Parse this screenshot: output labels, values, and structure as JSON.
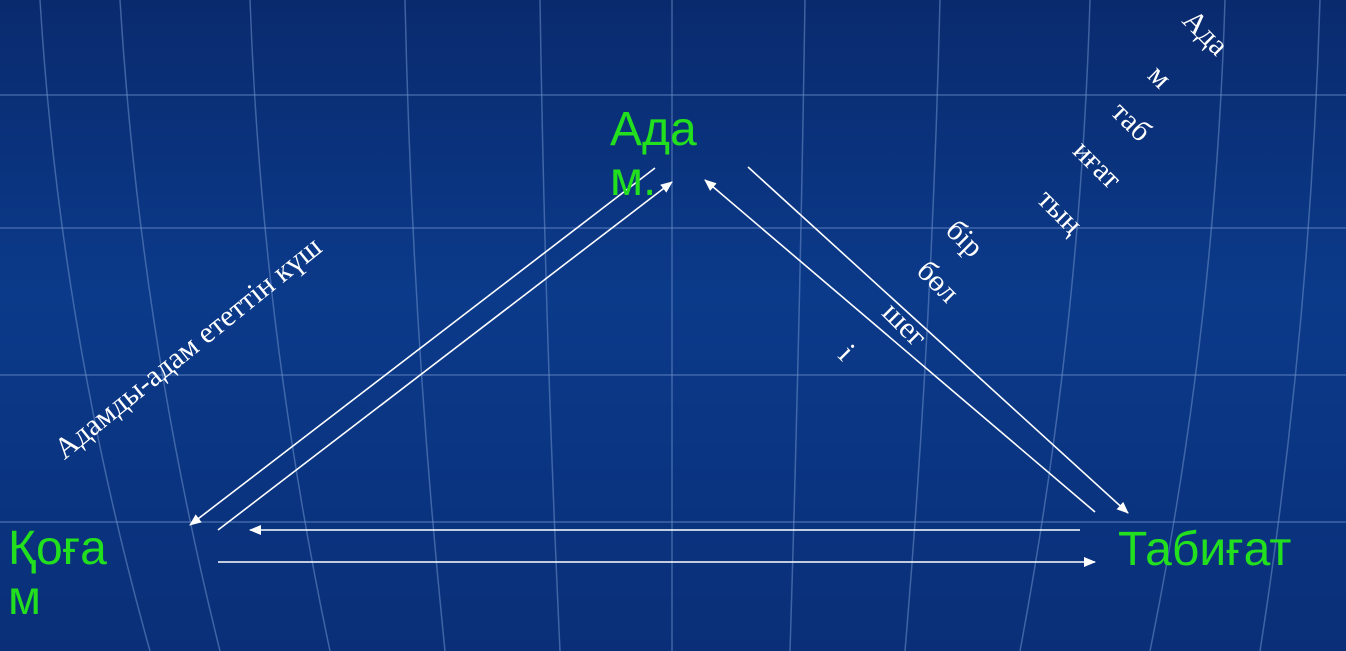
{
  "nodes": {
    "adam": "Ада\nм.",
    "qogam": "Қоға\nм",
    "tabigat": "Табиғат"
  },
  "left_label": "Адамды-адам ететтін күш",
  "right_label_parts": [
    "Ада",
    "м",
    "таб",
    "иғат",
    "тың",
    "бір",
    "бөл",
    "шег",
    "і"
  ],
  "colors": {
    "node_text": "#22e01e",
    "arrows": "#ffffff",
    "labels": "#ffffff"
  }
}
